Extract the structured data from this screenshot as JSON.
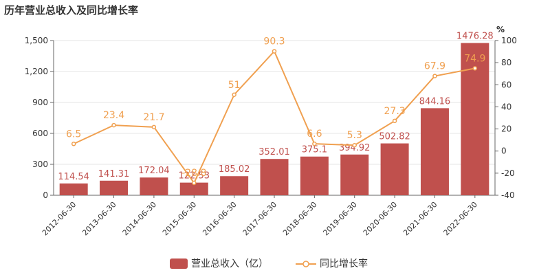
{
  "chart_data": {
    "type": "bar",
    "title": "历年营业总收入及同比增长率",
    "categories": [
      "2012-06-30",
      "2013-06-30",
      "2014-06-30",
      "2015-06-30",
      "2016-06-30",
      "2017-06-30",
      "2018-06-30",
      "2019-06-30",
      "2020-06-30",
      "2021-06-30",
      "2022-06-30"
    ],
    "series": [
      {
        "name": "营业总收入（亿）",
        "type": "bar",
        "axis": "left",
        "color": "#c0504d",
        "values": [
          114.54,
          141.31,
          172.04,
          122.53,
          185.02,
          352.01,
          375.1,
          394.92,
          502.82,
          844.16,
          1476.28
        ],
        "labels": [
          "114.54",
          "141.31",
          "172.04",
          "122.53",
          "185.02",
          "352.01",
          "375.1",
          "394.92",
          "502.82",
          "844.16",
          "1476.28"
        ]
      },
      {
        "name": "同比增长率",
        "type": "line",
        "axis": "right",
        "color": "#f0a050",
        "values": [
          6.5,
          23.4,
          21.7,
          -28.8,
          51,
          90.3,
          6.6,
          5.3,
          27.3,
          67.9,
          74.9
        ],
        "labels": [
          "6.5",
          "23.4",
          "21.7",
          "-28.8",
          "51",
          "90.3",
          "6.6",
          "5.3",
          "27.3",
          "67.9",
          "74.9"
        ]
      }
    ],
    "y_left": {
      "min": 0,
      "max": 1500,
      "ticks": [
        0,
        300,
        600,
        900,
        1200,
        1500
      ],
      "tick_labels": [
        "0",
        "300",
        "600",
        "900",
        "1,200",
        "1,500"
      ]
    },
    "y_right": {
      "min": -40,
      "max": 100,
      "ticks": [
        -40,
        -20,
        0,
        20,
        40,
        60,
        80,
        100
      ],
      "tick_labels": [
        "-40",
        "-20",
        "0",
        "20",
        "40",
        "60",
        "80",
        "100"
      ],
      "unit": "%"
    },
    "grid": true,
    "legend": "bottom-center"
  }
}
